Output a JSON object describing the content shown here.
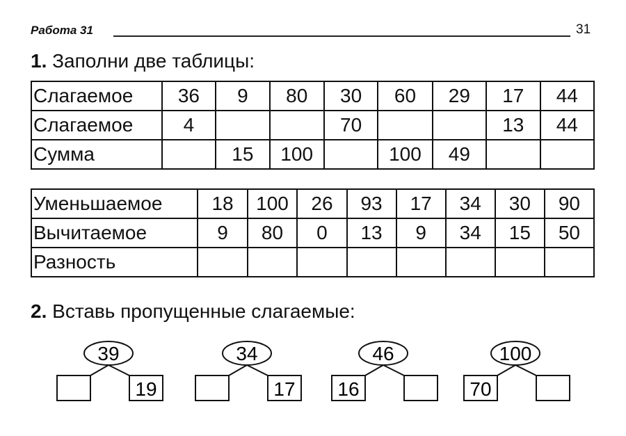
{
  "header": {
    "title": "Работа 31",
    "page_number": "31"
  },
  "task1": {
    "number": "1.",
    "text": " Заполни две таблицы:",
    "table1": {
      "rows": [
        {
          "label": "Слагаемое",
          "cells": [
            "36",
            "9",
            "80",
            "30",
            "60",
            "29",
            "17",
            "44"
          ]
        },
        {
          "label": "Слагаемое",
          "cells": [
            "4",
            "",
            "",
            "70",
            "",
            "",
            "13",
            "44"
          ]
        },
        {
          "label": "Сумма",
          "cells": [
            "",
            "15",
            "100",
            "",
            "100",
            "49",
            "",
            ""
          ]
        }
      ]
    },
    "table2": {
      "rows": [
        {
          "label": "Уменьшаемое",
          "cells": [
            "18",
            "100",
            "26",
            "93",
            "17",
            "34",
            "30",
            "90"
          ]
        },
        {
          "label": "Вычитаемое",
          "cells": [
            "9",
            "80",
            "0",
            "13",
            "9",
            "34",
            "15",
            "50"
          ]
        },
        {
          "label": "Разность",
          "cells": [
            "",
            "",
            "",
            "",
            "",
            "",
            "",
            ""
          ]
        }
      ]
    }
  },
  "task2": {
    "number": "2.",
    "text": " Вставь пропущенные слагаемые:",
    "trees": [
      {
        "total": "39",
        "left": "",
        "right": "19"
      },
      {
        "total": "34",
        "left": "",
        "right": "17"
      },
      {
        "total": "46",
        "left": "16",
        "right": ""
      },
      {
        "total": "100",
        "left": "70",
        "right": ""
      }
    ]
  }
}
